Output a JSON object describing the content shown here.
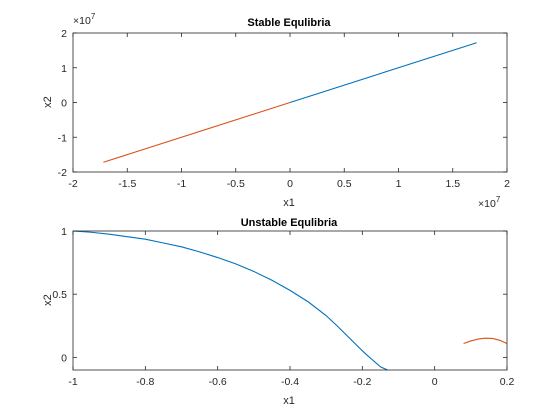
{
  "colors": {
    "series1": "#0072BD",
    "series2": "#D95319",
    "axis": "#262626"
  },
  "chart_data": [
    {
      "type": "line",
      "title": "Stable Equlibria",
      "xlabel": "x1",
      "ylabel": "x2",
      "xlim": [
        -20000000,
        20000000
      ],
      "ylim": [
        -20000000,
        20000000
      ],
      "x_multiplier_label": "×10",
      "x_multiplier_exponent": "7",
      "y_multiplier_label": "×10",
      "y_multiplier_exponent": "7",
      "xticks": [
        -20000000,
        -15000000,
        -10000000,
        -5000000,
        0,
        5000000,
        10000000,
        15000000,
        20000000
      ],
      "xtick_labels": [
        "-2",
        "-1.5",
        "-1",
        "-0.5",
        "0",
        "0.5",
        "1",
        "1.5",
        "2"
      ],
      "yticks": [
        -20000000,
        -10000000,
        0,
        10000000,
        20000000
      ],
      "ytick_labels": [
        "-2",
        "-1",
        "0",
        "1",
        "2"
      ],
      "grid": false,
      "series": [
        {
          "color": "#0072BD",
          "x": [
            0,
            17200000
          ],
          "y": [
            0,
            17200000
          ]
        },
        {
          "color": "#D95319",
          "x": [
            0,
            -17200000
          ],
          "y": [
            0,
            -17200000
          ]
        }
      ]
    },
    {
      "type": "line",
      "title": "Unstable Equlibria",
      "xlabel": "x1",
      "ylabel": "x2",
      "xlim": [
        -1,
        0.2
      ],
      "ylim": [
        -0.1,
        1
      ],
      "xticks": [
        -1,
        -0.8,
        -0.6,
        -0.4,
        -0.2,
        0,
        0.2
      ],
      "xtick_labels": [
        "-1",
        "-0.8",
        "-0.6",
        "-0.4",
        "-0.2",
        "0",
        "0.2"
      ],
      "yticks": [
        0,
        0.5,
        1
      ],
      "ytick_labels": [
        "0",
        "0.5",
        "1"
      ],
      "grid": false,
      "series": [
        {
          "color": "#0072BD",
          "x": [
            -1,
            -0.95,
            -0.9,
            -0.85,
            -0.8,
            -0.75,
            -0.7,
            -0.65,
            -0.6,
            -0.55,
            -0.5,
            -0.45,
            -0.4,
            -0.35,
            -0.3,
            -0.27,
            -0.24,
            -0.21,
            -0.19,
            -0.17,
            -0.15,
            -0.13
          ],
          "y": [
            1,
            0.99,
            0.975,
            0.955,
            0.935,
            0.905,
            0.875,
            0.835,
            0.79,
            0.74,
            0.68,
            0.61,
            0.53,
            0.44,
            0.33,
            0.25,
            0.165,
            0.08,
            0.025,
            -0.025,
            -0.075,
            -0.1
          ]
        },
        {
          "color": "#D95319",
          "x": [
            0.08,
            0.1,
            0.12,
            0.14,
            0.16,
            0.18,
            0.2
          ],
          "y": [
            0.11,
            0.13,
            0.145,
            0.152,
            0.15,
            0.135,
            0.11
          ]
        }
      ]
    }
  ]
}
